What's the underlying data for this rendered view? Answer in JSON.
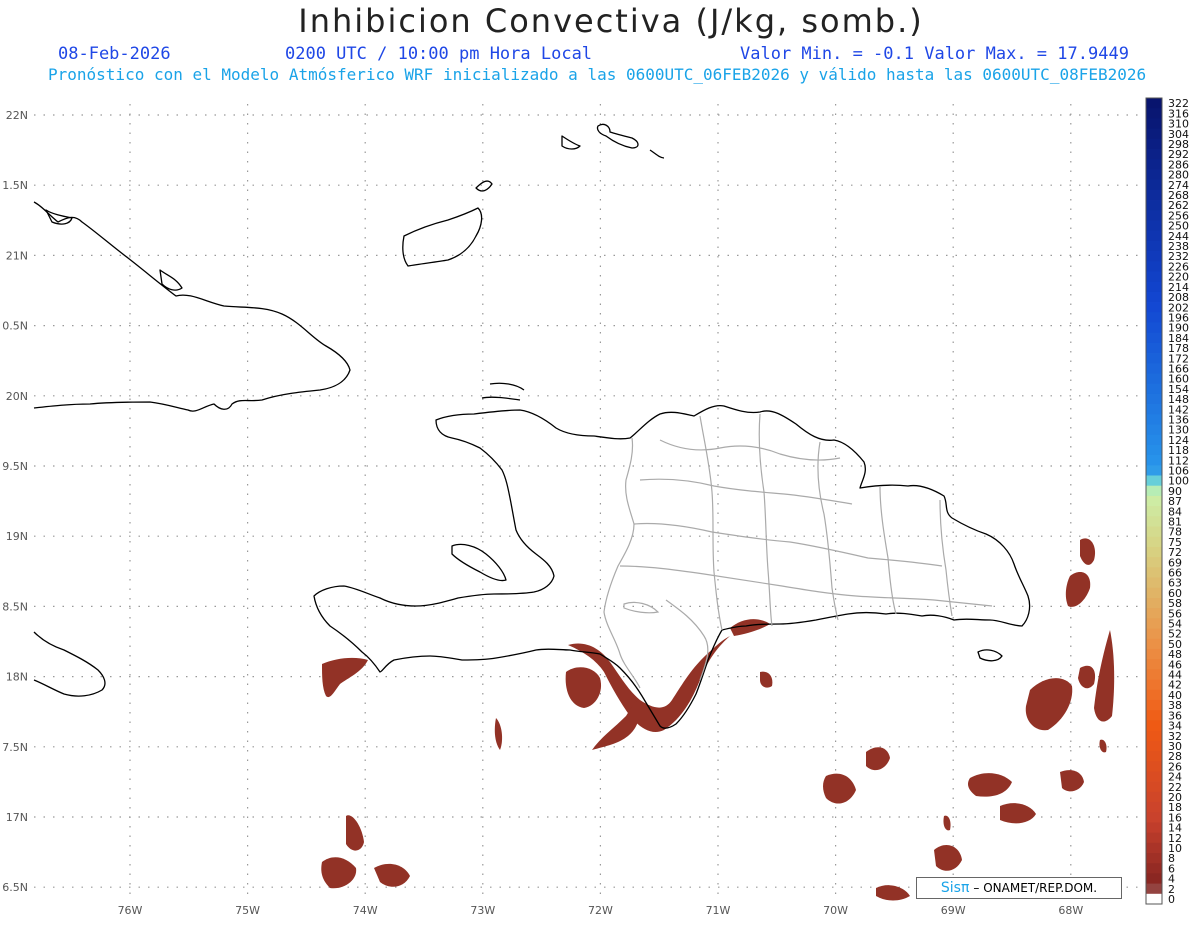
{
  "header": {
    "title": "Inhibicion Convectiva (J/kg, somb.)",
    "date": "08-Feb-2026",
    "time": "0200 UTC / 10:00 pm Hora Local",
    "stats": "Valor Min. = -0.1  Valor Max. = 17.9449",
    "subtitle": "Pronóstico con el Modelo Atmósferico WRF inicializado a las 0600UTC_06FEB2026 y válido hasta las  0600UTC_08FEB2026"
  },
  "axes": {
    "lat_labels": [
      "22N",
      "1.5N",
      "21N",
      "0.5N",
      "20N",
      "9.5N",
      "19N",
      "8.5N",
      "18N",
      "7.5N",
      "17N",
      "6.5N"
    ],
    "lon_labels": [
      "76W",
      "75W",
      "74W",
      "73W",
      "72W",
      "71W",
      "70W",
      "69W",
      "68W"
    ]
  },
  "colorbar": {
    "labels": [
      "322",
      "316",
      "310",
      "304",
      "298",
      "292",
      "286",
      "280",
      "274",
      "268",
      "262",
      "256",
      "250",
      "244",
      "238",
      "232",
      "226",
      "220",
      "214",
      "208",
      "202",
      "196",
      "190",
      "184",
      "178",
      "172",
      "166",
      "160",
      "154",
      "148",
      "142",
      "136",
      "130",
      "124",
      "118",
      "112",
      "106",
      "100",
      "90",
      "87",
      "84",
      "81",
      "78",
      "75",
      "72",
      "69",
      "66",
      "63",
      "60",
      "58",
      "56",
      "54",
      "52",
      "50",
      "48",
      "46",
      "44",
      "42",
      "40",
      "38",
      "36",
      "34",
      "32",
      "30",
      "28",
      "26",
      "24",
      "22",
      "20",
      "18",
      "16",
      "14",
      "12",
      "10",
      "8",
      "6",
      "4",
      "2",
      "0"
    ]
  },
  "shading": {
    "color": "#923226"
  },
  "credit": {
    "sis": "Sis",
    "pi": "π",
    "text": "– ONAMET/REP.DOM."
  }
}
